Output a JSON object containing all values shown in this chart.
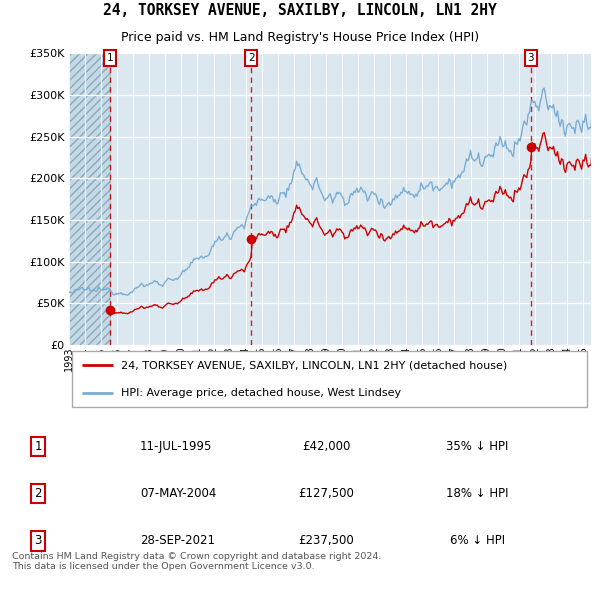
{
  "title": "24, TORKSEY AVENUE, SAXILBY, LINCOLN, LN1 2HY",
  "subtitle": "Price paid vs. HM Land Registry's House Price Index (HPI)",
  "legend_line1": "24, TORKSEY AVENUE, SAXILBY, LINCOLN, LN1 2HY (detached house)",
  "legend_line2": "HPI: Average price, detached house, West Lindsey",
  "transactions": [
    {
      "num": 1,
      "date": "11-JUL-1995",
      "year": 1995.53,
      "price": 42000,
      "hpi_pct": "35% ↓ HPI"
    },
    {
      "num": 2,
      "date": "07-MAY-2004",
      "year": 2004.35,
      "price": 127500,
      "hpi_pct": "18% ↓ HPI"
    },
    {
      "num": 3,
      "date": "28-SEP-2021",
      "year": 2021.74,
      "price": 237500,
      "hpi_pct": "6% ↓ HPI"
    }
  ],
  "price_line_color": "#cc0000",
  "hpi_line_color": "#7aadd4",
  "dashed_line_color": "#cc0000",
  "marker_color": "#cc0000",
  "chart_bg_color": "#dce8f0",
  "grid_color": "#ffffff",
  "footer_text": "Contains HM Land Registry data © Crown copyright and database right 2024.\nThis data is licensed under the Open Government Licence v3.0.",
  "ylim": [
    0,
    350000
  ],
  "yticks": [
    0,
    50000,
    100000,
    150000,
    200000,
    250000,
    300000,
    350000
  ],
  "ytick_labels": [
    "£0",
    "£50K",
    "£100K",
    "£150K",
    "£200K",
    "£250K",
    "£300K",
    "£350K"
  ],
  "xstart": 1993.0,
  "xend": 2025.5
}
